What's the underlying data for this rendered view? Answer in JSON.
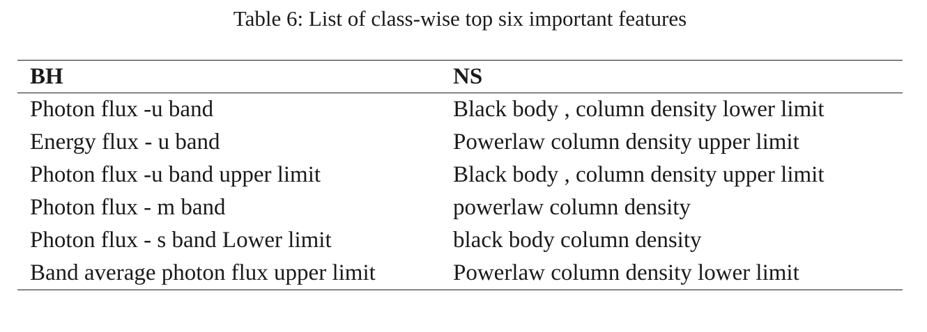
{
  "caption": "Table 6: List of class-wise top six important features",
  "table": {
    "headers": [
      "BH",
      "NS"
    ],
    "rows": [
      [
        "Photon flux -u band",
        "Black body , column density lower limit"
      ],
      [
        "Energy flux - u band",
        "Powerlaw column density upper limit"
      ],
      [
        "Photon flux -u band upper limit",
        "Black body , column density upper limit"
      ],
      [
        "Photon flux - m band",
        "powerlaw column density"
      ],
      [
        "Photon flux - s band Lower limit",
        "black body column density"
      ],
      [
        "Band average photon flux upper limit",
        "Powerlaw column density lower limit"
      ]
    ]
  }
}
